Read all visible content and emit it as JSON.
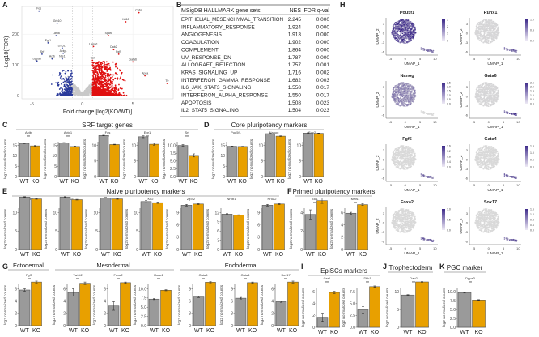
{
  "colors": {
    "wt": "#9a9a9a",
    "ko": "#e8a000",
    "down": "#2a3a9a",
    "up": "#e01010",
    "ns": "#c8c8c8",
    "umap_high": "#3d2a8a",
    "umap_low": "#d9d9d9"
  },
  "panel_letters": [
    "A",
    "B",
    "C",
    "D",
    "E",
    "F",
    "G",
    "H",
    "I",
    "J",
    "K"
  ],
  "chart_data": [
    {
      "id": "A",
      "type": "scatter",
      "title": "",
      "xlabel": "Fold change [log2(KO/WT)]",
      "ylabel": "-Log10(FDR)",
      "xlim": [
        -6,
        9
      ],
      "ylim": [
        -10,
        290
      ],
      "xticks": [
        -5,
        0,
        5
      ],
      "yticks": [
        0,
        100,
        200
      ],
      "grid": true,
      "point_counts": {
        "down": 260,
        "ns": 900,
        "up": 1200
      },
      "gene_labels": [
        {
          "g": "Fos",
          "x": -4.3,
          "y": 275
        },
        {
          "g": "Grb10",
          "x": -2.5,
          "y": 235
        },
        {
          "g": "Lama",
          "x": -2.6,
          "y": 195
        },
        {
          "g": "Egr1",
          "x": -3.4,
          "y": 172
        },
        {
          "g": "Lmcd1",
          "x": -2.0,
          "y": 155
        },
        {
          "g": "Actg1",
          "x": -1.9,
          "y": 138
        },
        {
          "g": "Srf",
          "x": -4.0,
          "y": 135
        },
        {
          "g": "Actb",
          "x": -3.0,
          "y": 120
        },
        {
          "g": "Nfe1",
          "x": -2.0,
          "y": 120
        },
        {
          "g": "Dppa3",
          "x": -4.5,
          "y": 113
        },
        {
          "g": "Lama1",
          "x": 1.1,
          "y": 160
        },
        {
          "g": "Sparc",
          "x": 2.6,
          "y": 195
        },
        {
          "g": "Col",
          "x": 1.0,
          "y": 115
        },
        {
          "g": "Fgf5",
          "x": 3.6,
          "y": 135
        },
        {
          "g": "Dab2",
          "x": 3.1,
          "y": 150
        },
        {
          "g": "Gata6",
          "x": 5.0,
          "y": 110
        },
        {
          "g": "Krt18",
          "x": 4.3,
          "y": 240
        },
        {
          "g": "Cubn",
          "x": 5.6,
          "y": 270
        },
        {
          "g": "Apoa",
          "x": 6.2,
          "y": 65
        },
        {
          "g": "Ttr",
          "x": 8.4,
          "y": 40
        }
      ]
    },
    {
      "id": "C",
      "section": "SRF target genes",
      "type": "bar",
      "ylabel": "log2 normalized counts",
      "categories": [
        "WT",
        "KO"
      ],
      "genes": [
        {
          "name": "Actb",
          "sig": "**",
          "values": [
            16.0,
            14.8
          ],
          "err": [
            0.15,
            0.2
          ],
          "yticks": [
            0,
            5,
            10,
            15
          ]
        },
        {
          "name": "Actg1",
          "sig": "**",
          "values": [
            16.3,
            14.5
          ],
          "err": [
            0.1,
            0.2
          ],
          "yticks": [
            0,
            5,
            10,
            15
          ]
        },
        {
          "name": "Fos",
          "sig": "**",
          "values": [
            13.2,
            10.3
          ],
          "err": [
            0.1,
            0.1
          ],
          "yticks": [
            0,
            5,
            10
          ]
        },
        {
          "name": "Egr1",
          "sig": "**",
          "values": [
            12.8,
            10.4
          ],
          "err": [
            0.3,
            0.3
          ],
          "yticks": [
            0,
            5,
            10
          ]
        },
        {
          "name": "Srf",
          "sig": "**",
          "values": [
            10.0,
            6.8
          ],
          "err": [
            0.3,
            0.5
          ],
          "yticks": [
            0,
            2.5,
            5,
            7.5,
            10
          ],
          "yticklabels": [
            "0.0",
            "2.5",
            "5.0",
            "7.5",
            "10.0"
          ]
        }
      ]
    },
    {
      "id": "D",
      "section": "Core pluripotency markers",
      "type": "bar",
      "ylabel": "log2 normalized counts",
      "categories": [
        "WT",
        "KO"
      ],
      "genes": [
        {
          "name": "Pou5f1",
          "sig": "",
          "values": [
            14.6,
            14.5
          ],
          "err": [
            0.1,
            0.1
          ],
          "yticks": [
            0,
            5,
            10,
            15
          ]
        },
        {
          "name": "Nanog",
          "sig": "",
          "values": [
            13.8,
            13.0
          ],
          "err": [
            0.1,
            0.1
          ],
          "yticks": [
            0,
            5,
            10
          ]
        },
        {
          "name": "Sox2",
          "sig": "",
          "values": [
            14.0,
            13.9
          ],
          "err": [
            0.1,
            0.1
          ],
          "yticks": [
            0,
            5,
            10
          ]
        }
      ]
    },
    {
      "id": "E",
      "section": "Naive pluripotency markers",
      "type": "bar",
      "ylabel": "log2 normalized counts",
      "categories": [
        "WT",
        "KO"
      ],
      "genes": [
        {
          "name": "Esrrb",
          "sig": "",
          "values": [
            14.2,
            13.7
          ],
          "err": [
            0.1,
            0.1
          ],
          "yticks": [
            0,
            5,
            10
          ]
        },
        {
          "name": "Tfcp2l1",
          "sig": "",
          "values": [
            14.2,
            13.5
          ],
          "err": [
            0.1,
            0.1
          ],
          "yticks": [
            0,
            5,
            10
          ]
        },
        {
          "name": "Klf4",
          "sig": "",
          "values": [
            14.0,
            13.7
          ],
          "err": [
            0.1,
            0.1
          ],
          "yticks": [
            0,
            5,
            10
          ]
        },
        {
          "name": "Klf2",
          "sig": "",
          "values": [
            13.0,
            12.7
          ],
          "err": [
            0.3,
            0.2
          ],
          "yticks": [
            0,
            5,
            10
          ]
        },
        {
          "name": "Zfp42",
          "sig": "",
          "values": [
            10.8,
            11.1
          ],
          "err": [
            0.2,
            0.15
          ],
          "yticks": [
            0,
            3,
            6,
            9
          ]
        },
        {
          "name": "Nr0b1",
          "sig": "",
          "values": [
            11.5,
            11.2
          ],
          "err": [
            0.15,
            0.1
          ],
          "yticks": [
            0,
            3,
            6,
            9,
            12
          ]
        },
        {
          "name": "Nr5a2",
          "sig": "",
          "values": [
            10.8,
            11.1
          ],
          "err": [
            0.2,
            0.15
          ],
          "yticks": [
            0,
            3,
            6,
            9
          ]
        }
      ]
    },
    {
      "id": "F",
      "section": "Primed pluripotency markers",
      "type": "bar",
      "ylabel": "log2 normalized counts",
      "categories": [
        "WT",
        "KO"
      ],
      "genes": [
        {
          "name": "Zic1",
          "sig": "**",
          "values": [
            3.8,
            5.3
          ],
          "err": [
            0.5,
            0.3
          ],
          "yticks": [
            0,
            2,
            4
          ]
        },
        {
          "name": "Meis1",
          "sig": "**",
          "values": [
            5.9,
            7.3
          ],
          "err": [
            0.15,
            0.15
          ],
          "yticks": [
            0,
            2,
            4,
            6
          ]
        }
      ]
    },
    {
      "id": "G",
      "type": "bar",
      "ylabel": "log2 normalized counts",
      "categories": [
        "WT",
        "KO"
      ],
      "subsections": [
        "Ectodermal",
        "Mesodermal",
        "Endodermal"
      ],
      "genes": [
        {
          "name": "Fgf5",
          "sig": "**",
          "values": [
            5.8,
            7.1
          ],
          "err": [
            0.2,
            0.15
          ],
          "yticks": [
            0,
            2,
            4,
            6
          ]
        },
        {
          "name": "Twist2",
          "sig": "**",
          "values": [
            5.4,
            6.9
          ],
          "err": [
            0.6,
            0.2
          ],
          "yticks": [
            0,
            2,
            4,
            6
          ]
        },
        {
          "name": "Foxa2",
          "sig": "**",
          "values": [
            3.2,
            7.0
          ],
          "err": [
            0.7,
            0.1
          ],
          "yticks": [
            0,
            2,
            4,
            6
          ]
        },
        {
          "name": "Runx1",
          "sig": "**",
          "values": [
            7.2,
            9.6
          ],
          "err": [
            0.15,
            0.15
          ],
          "yticks": [
            0,
            2.5,
            5,
            7.5,
            10
          ],
          "yticklabels": [
            "0.0",
            "2.5",
            "5.0",
            "7.5",
            "10.0"
          ]
        },
        {
          "name": "Gata6",
          "sig": "**",
          "values": [
            7.0,
            10.6
          ],
          "err": [
            0.15,
            0.15
          ],
          "yticks": [
            0,
            3,
            6,
            9
          ]
        },
        {
          "name": "Gata4",
          "sig": "**",
          "values": [
            6.7,
            10.5
          ],
          "err": [
            0.2,
            0.15
          ],
          "yticks": [
            0,
            3,
            6,
            9
          ]
        },
        {
          "name": "Sox17",
          "sig": "**",
          "values": [
            3.9,
            7.1
          ],
          "err": [
            0.1,
            0.15
          ],
          "yticks": [
            0,
            2,
            4,
            6
          ]
        }
      ]
    },
    {
      "id": "I",
      "section": "EpiSCs markers",
      "type": "bar",
      "ylabel": "log2 normalized counts",
      "categories": [
        "WT",
        "KO"
      ],
      "genes": [
        {
          "name": "Cer1",
          "sig": "**",
          "values": [
            1.7,
            5.9
          ],
          "err": [
            0.7,
            0.2
          ],
          "yticks": [
            0,
            2,
            4,
            6
          ]
        },
        {
          "name": "Dkk1",
          "sig": "**",
          "values": [
            3.7,
            8.6
          ],
          "err": [
            0.7,
            0.15
          ],
          "yticks": [
            0,
            2.5,
            5,
            7.5
          ],
          "yticklabels": [
            "0.0",
            "2.5",
            "5.0",
            "7.5"
          ]
        }
      ]
    },
    {
      "id": "J",
      "section": "Trophectoderm",
      "type": "bar",
      "ylabel": "log2 normalized counts",
      "categories": [
        "WT",
        "KO"
      ],
      "genes": [
        {
          "name": "Dab2",
          "sig": "**",
          "values": [
            9.1,
            12.8
          ],
          "err": [
            0.1,
            0.1
          ],
          "yticks": [
            0,
            5,
            10
          ]
        }
      ]
    },
    {
      "id": "K",
      "section": "PGC marker",
      "type": "bar",
      "ylabel": "log2 normalized counts",
      "categories": [
        "WT",
        "KO"
      ],
      "genes": [
        {
          "name": "Dppa3",
          "sig": "**",
          "values": [
            9.8,
            7.7
          ],
          "err": [
            0.15,
            0.1
          ],
          "yticks": [
            0,
            2.5,
            5,
            7.5,
            10
          ],
          "yticklabels": [
            "0.0",
            "2.5",
            "5.0",
            "7.5",
            "10.0"
          ]
        }
      ]
    },
    {
      "id": "H",
      "type": "scatter",
      "xlabel": "UMAP_1",
      "ylabel": "UMAP_2",
      "xticks": [
        -5,
        0,
        5,
        10
      ],
      "yticks": [
        -6,
        -3,
        0,
        3
      ],
      "plots": [
        {
          "gene": "Pou5f1",
          "scale": [
            "0",
            "1",
            "2",
            "3"
          ],
          "expr_main": 0.95,
          "expr_small": 0.6
        },
        {
          "gene": "Runx1",
          "scale": [
            "0.0",
            "0.5",
            "1.0"
          ],
          "expr_main": 0.02,
          "expr_small": 0.7
        },
        {
          "gene": "Nanog",
          "scale": [
            "0.0",
            "0.5",
            "1.0",
            "1.5",
            "2.0",
            "2.5"
          ],
          "expr_main": 0.5,
          "expr_small": 0.0
        },
        {
          "gene": "Gata6",
          "scale": [
            "0.0",
            "0.5",
            "1.0",
            "1.5",
            "2.0",
            "2.5"
          ],
          "expr_main": 0.02,
          "expr_small": 0.9
        },
        {
          "gene": "Fgf5",
          "scale": [
            "0.0",
            "0.4",
            "0.8",
            "1.2",
            "1.6"
          ],
          "expr_main": 0.0,
          "expr_small": 0.6
        },
        {
          "gene": "Gata4",
          "scale": [
            "0.0",
            "0.5",
            "1.0",
            "1.5"
          ],
          "expr_main": 0.0,
          "expr_small": 0.9
        },
        {
          "gene": "Foxa2",
          "scale": [
            "0.0",
            "0.5",
            "1.0"
          ],
          "expr_main": 0.0,
          "expr_small": 0.7
        },
        {
          "gene": "Sox17",
          "scale": [
            "0.0",
            "0.4",
            "0.8",
            "1.2",
            "1.6"
          ],
          "expr_main": 0.0,
          "expr_small": 0.7
        }
      ]
    }
  ],
  "table_B": {
    "headers": [
      "MSigDB HALLMARK gene sets",
      "NES",
      "FDR q-val"
    ],
    "rows": [
      [
        "EPITHELIAL_MESENCHYMAL_TRANSITION",
        "2.245",
        "0.000"
      ],
      [
        "INFLAMMATORY_RESPONSE",
        "1.924",
        "0.000"
      ],
      [
        "ANGIOGENESIS",
        "1.913",
        "0.000"
      ],
      [
        "COAGULATION",
        "1.902",
        "0.000"
      ],
      [
        "COMPLEMENT",
        "1.864",
        "0.000"
      ],
      [
        "UV_RESPONSE_DN",
        "1.787",
        "0.000"
      ],
      [
        "ALLOGRAFT_REJECTION",
        "1.757",
        "0.001"
      ],
      [
        "KRAS_SIGNALING_UP",
        "1.716",
        "0.002"
      ],
      [
        "INTERFERON_GAMMA_RESPONSE",
        "1.682",
        "0.003"
      ],
      [
        "IL6_JAK_STAT3_SIGNALING",
        "1.558",
        "0.017"
      ],
      [
        "INTERFERON_ALPHA_RESPONSE",
        "1.550",
        "0.017"
      ],
      [
        "APOPTOSIS",
        "1.508",
        "0.023"
      ],
      [
        "IL2_STAT5_SIGNALING",
        "1.504",
        "0.023"
      ]
    ]
  }
}
